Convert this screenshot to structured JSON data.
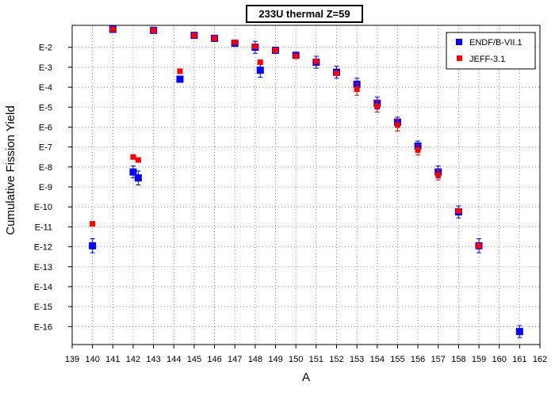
{
  "chart_data": {
    "type": "scatter",
    "title": "233U thermal Z=59",
    "xlabel": "A",
    "ylabel": "Cumulative Fission Yield",
    "xlim": [
      139,
      162
    ],
    "ylim": [
      -16.9,
      -0.9
    ],
    "y_scale": "log10",
    "grid": true,
    "legend_position": "top-right",
    "x_ticks": [
      "139",
      "140",
      "141",
      "142",
      "143",
      "144",
      "145",
      "146",
      "147",
      "148",
      "149",
      "150",
      "151",
      "152",
      "153",
      "154",
      "155",
      "156",
      "157",
      "158",
      "159",
      "160",
      "161",
      "162"
    ],
    "y_ticks": [
      {
        "value": -2,
        "label": "E-2"
      },
      {
        "value": -3,
        "label": "E-3"
      },
      {
        "value": -4,
        "label": "E-4"
      },
      {
        "value": -5,
        "label": "E-5"
      },
      {
        "value": -6,
        "label": "E-6"
      },
      {
        "value": -7,
        "label": "E-7"
      },
      {
        "value": -8,
        "label": "E-8"
      },
      {
        "value": -9,
        "label": "E-9"
      },
      {
        "value": -10,
        "label": "E-10"
      },
      {
        "value": -11,
        "label": "E-11"
      },
      {
        "value": -12,
        "label": "E-12"
      },
      {
        "value": -13,
        "label": "E-13"
      },
      {
        "value": -14,
        "label": "E-14"
      },
      {
        "value": -15,
        "label": "E-15"
      },
      {
        "value": -16,
        "label": "E-16"
      }
    ],
    "series": [
      {
        "name": "ENDF/B-VII.1",
        "color": "#0000ff",
        "marker": "square",
        "points": [
          {
            "x": 140,
            "y": -11.95,
            "err": 0.35
          },
          {
            "x": 141,
            "y": -1.1
          },
          {
            "x": 142,
            "y": -8.25,
            "err": 0.3
          },
          {
            "x": 142.25,
            "y": -8.55,
            "err": 0.35
          },
          {
            "x": 143,
            "y": -1.15
          },
          {
            "x": 144.3,
            "y": -3.6
          },
          {
            "x": 145,
            "y": -1.4
          },
          {
            "x": 146,
            "y": -1.55
          },
          {
            "x": 147,
            "y": -1.8
          },
          {
            "x": 148,
            "y": -2.0,
            "err": 0.3
          },
          {
            "x": 148.25,
            "y": -3.15,
            "err": 0.35
          },
          {
            "x": 149,
            "y": -2.15
          },
          {
            "x": 150,
            "y": -2.4
          },
          {
            "x": 151,
            "y": -2.75,
            "err": 0.3
          },
          {
            "x": 152,
            "y": -3.25,
            "err": 0.3
          },
          {
            "x": 153,
            "y": -3.85,
            "err": 0.3
          },
          {
            "x": 154,
            "y": -4.8,
            "err": 0.3
          },
          {
            "x": 155,
            "y": -5.75,
            "err": 0.25
          },
          {
            "x": 156,
            "y": -6.95,
            "err": 0.25
          },
          {
            "x": 157,
            "y": -8.25,
            "err": 0.3
          },
          {
            "x": 158,
            "y": -10.25,
            "err": 0.3
          },
          {
            "x": 159,
            "y": -11.95,
            "err": 0.35
          },
          {
            "x": 161,
            "y": -16.25,
            "err": 0.3
          }
        ]
      },
      {
        "name": "JEFF-3.1",
        "color": "#ff0000",
        "marker": "square",
        "points": [
          {
            "x": 140,
            "y": -10.85
          },
          {
            "x": 141,
            "y": -1.1
          },
          {
            "x": 142,
            "y": -7.5
          },
          {
            "x": 142.25,
            "y": -7.65
          },
          {
            "x": 143,
            "y": -1.15
          },
          {
            "x": 144.3,
            "y": -3.2
          },
          {
            "x": 145,
            "y": -1.4
          },
          {
            "x": 146,
            "y": -1.55
          },
          {
            "x": 147,
            "y": -1.75
          },
          {
            "x": 148,
            "y": -1.95
          },
          {
            "x": 148.25,
            "y": -2.75
          },
          {
            "x": 149,
            "y": -2.15
          },
          {
            "x": 150,
            "y": -2.45
          },
          {
            "x": 151,
            "y": -2.7
          },
          {
            "x": 152,
            "y": -3.3
          },
          {
            "x": 153,
            "y": -4.1,
            "err": 0.3
          },
          {
            "x": 154,
            "y": -4.95,
            "err": 0.3
          },
          {
            "x": 155,
            "y": -5.9,
            "err": 0.3
          },
          {
            "x": 156,
            "y": -7.15,
            "err": 0.25
          },
          {
            "x": 157,
            "y": -8.4,
            "err": 0.25
          },
          {
            "x": 158,
            "y": -10.2
          },
          {
            "x": 159,
            "y": -11.95
          }
        ]
      }
    ]
  }
}
